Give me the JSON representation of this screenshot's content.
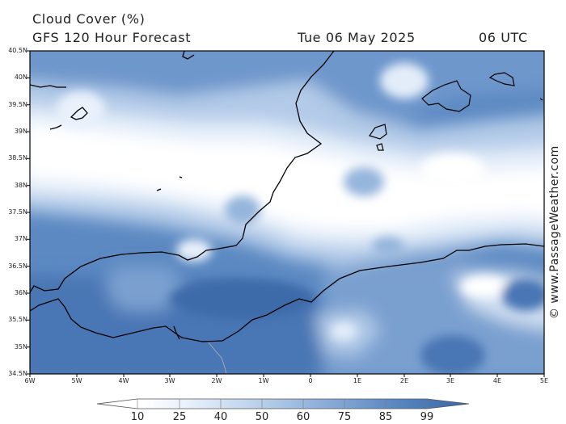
{
  "header": {
    "title": "Cloud Cover (%)",
    "subtitle": "GFS 120 Hour Forecast",
    "date": "Tue 06 May 2025",
    "time": "06 UTC"
  },
  "axes": {
    "lat_labels": [
      "40.5N",
      "40N",
      "39.5N",
      "39N",
      "38.5N",
      "38N",
      "37.5N",
      "37N",
      "36.5N",
      "36N",
      "35.5N",
      "35N",
      "34.5N"
    ],
    "lon_labels": [
      "6W",
      "5W",
      "4W",
      "3W",
      "2W",
      "1W",
      "0",
      "1E",
      "2E",
      "3E",
      "4E",
      "5E"
    ]
  },
  "credit": "© www.PassageWeather.com",
  "legend": {
    "labels": [
      "10",
      "25",
      "40",
      "50",
      "60",
      "75",
      "85",
      "99"
    ],
    "colors": [
      "#ffffff",
      "#e9f1fb",
      "#cfdff2",
      "#b3cbe8",
      "#95b5dc",
      "#7aa0d0",
      "#5c89c2",
      "#4876b4",
      "#3a66a6"
    ]
  },
  "colors": {
    "land": "#3d6aa9",
    "coastline": "#000000",
    "border": "#9aa6b8"
  }
}
